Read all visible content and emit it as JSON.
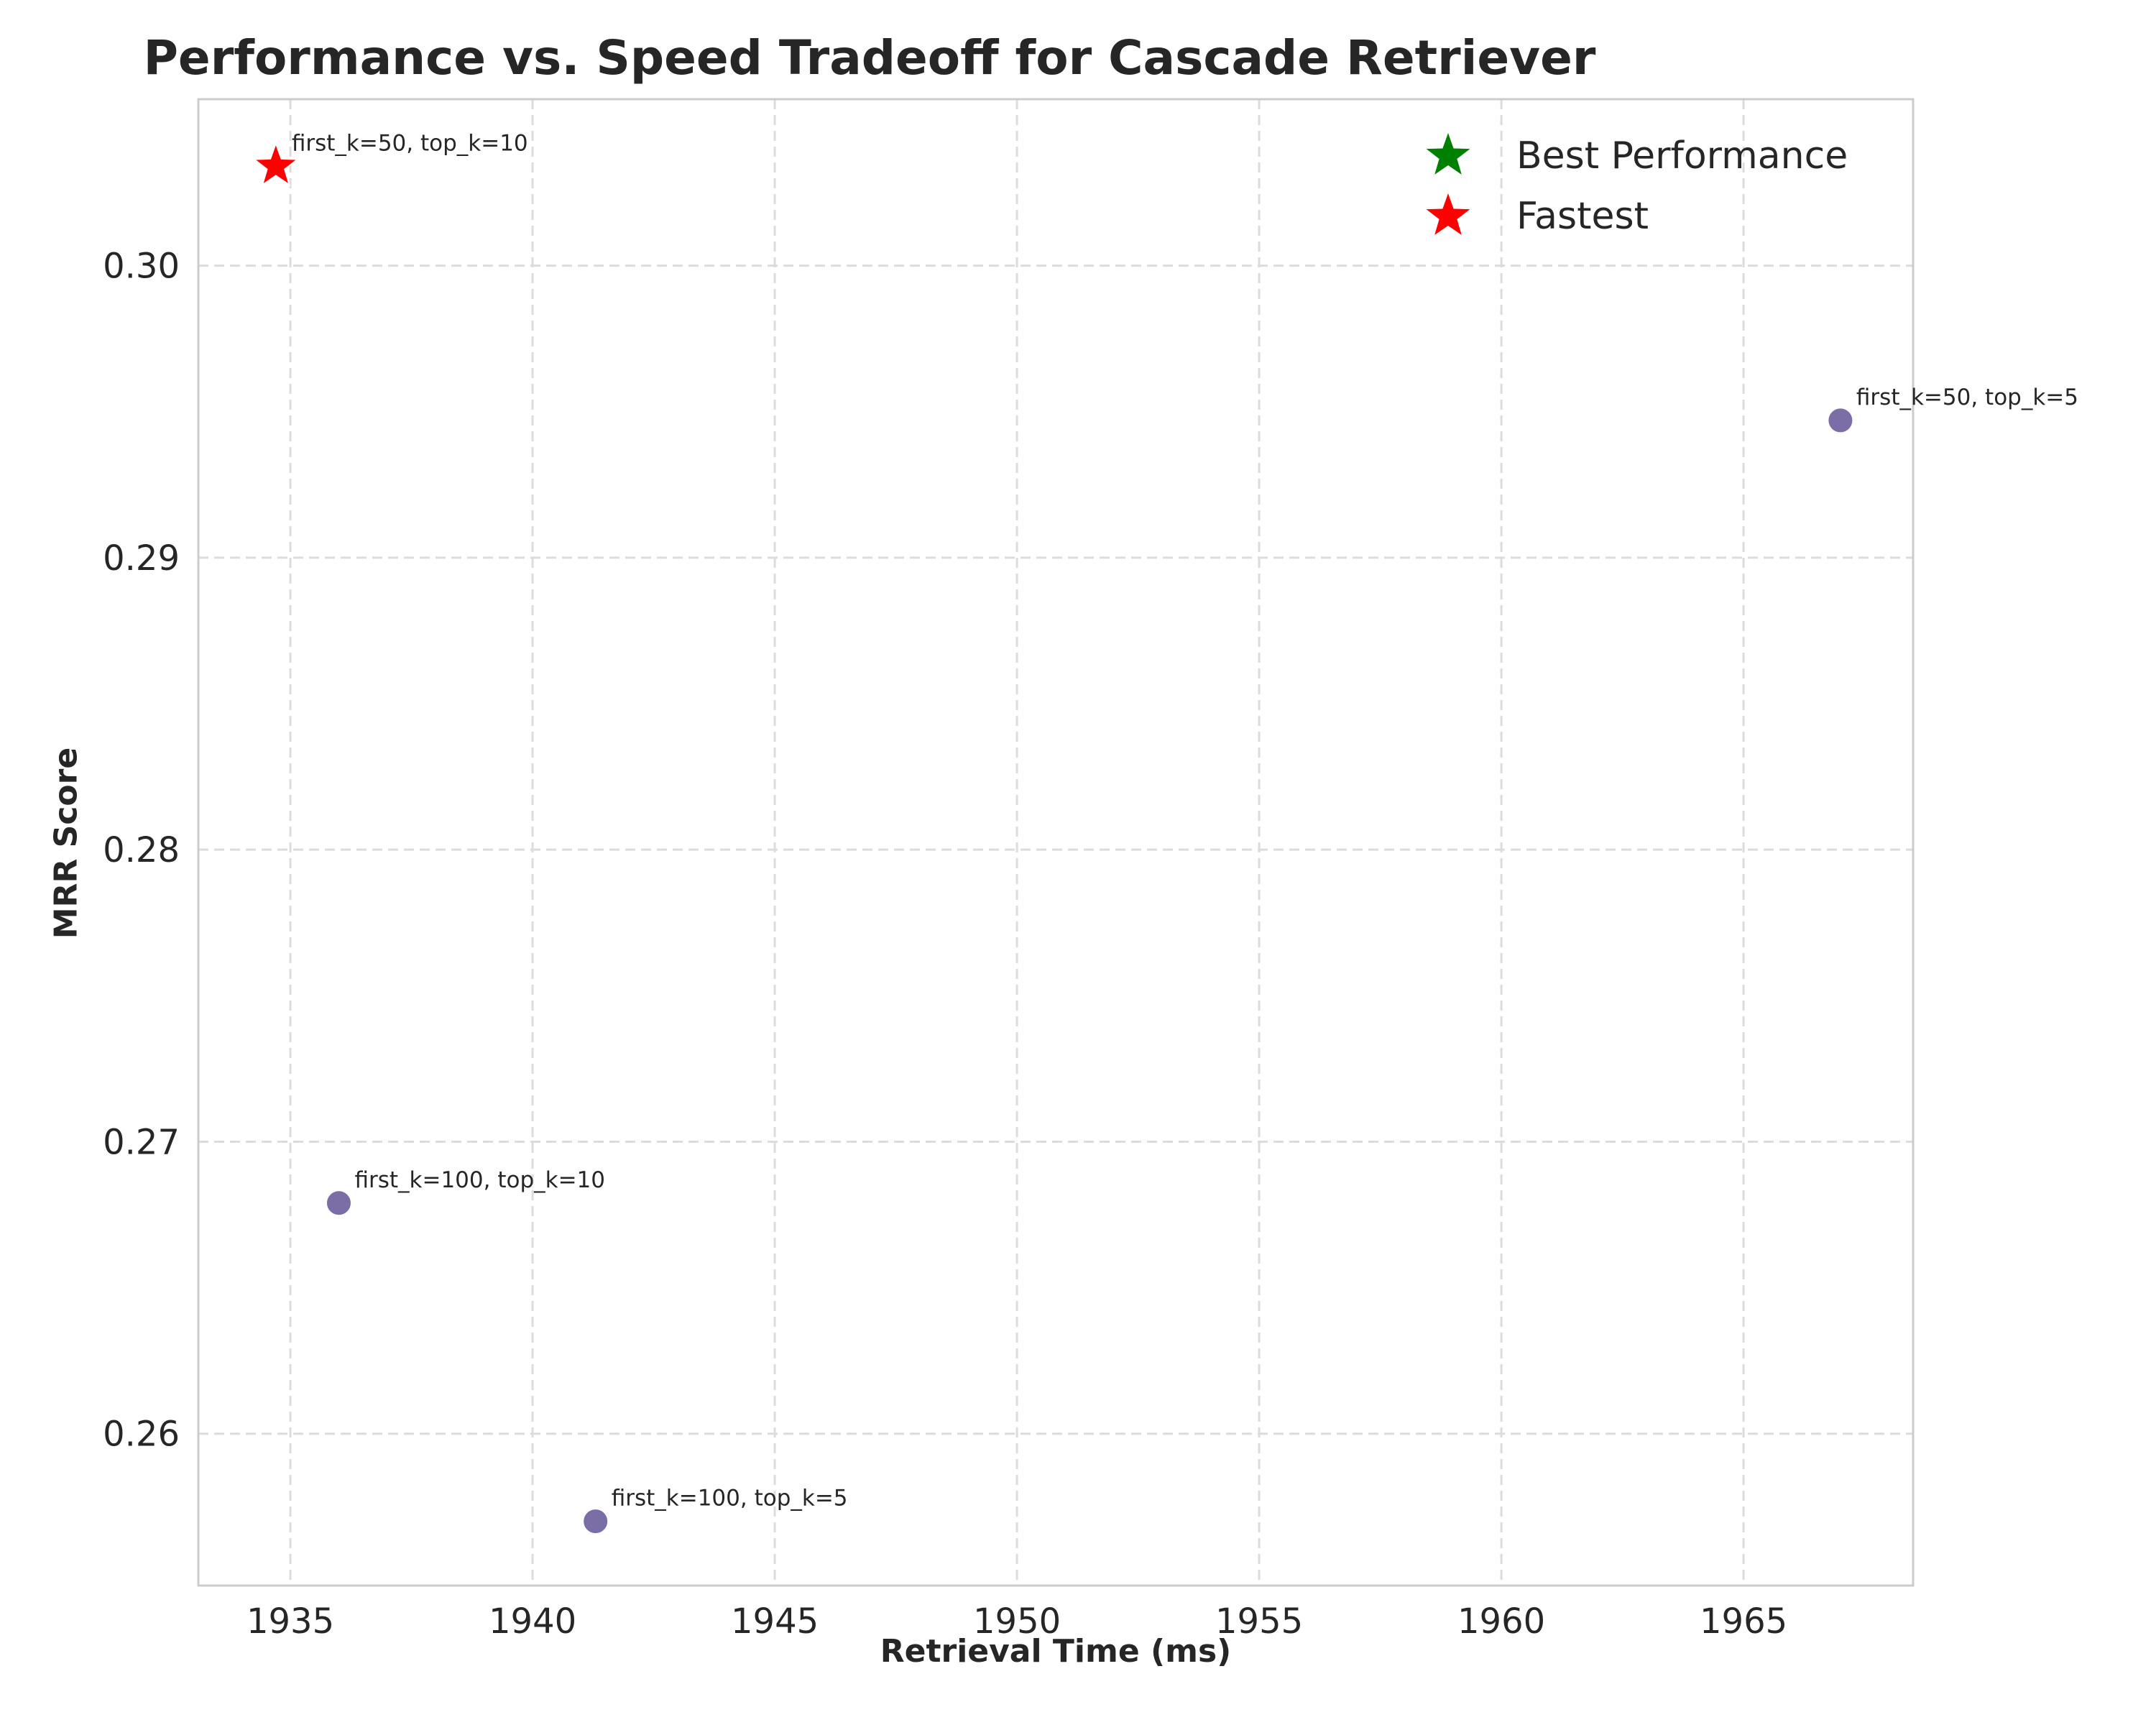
{
  "chart_data": {
    "type": "scatter",
    "title": "Performance vs. Speed Tradeoff for Cascade Retriever",
    "xlabel": "Retrieval Time (ms)",
    "ylabel": "MRR Score",
    "xlim": [
      1933.1,
      1968.5
    ],
    "ylim": [
      0.2548,
      0.3057
    ],
    "xticks": [
      1935,
      1940,
      1945,
      1950,
      1955,
      1960,
      1965
    ],
    "xtick_labels": [
      "1935",
      "1940",
      "1945",
      "1950",
      "1955",
      "1960",
      "1965"
    ],
    "yticks": [
      0.26,
      0.27,
      0.28,
      0.29,
      0.3
    ],
    "ytick_labels": [
      "0.26",
      "0.27",
      "0.28",
      "0.29",
      "0.30"
    ],
    "grid": true,
    "legend_position": "top-right",
    "points": [
      {
        "label": "first_k=50, top_k=10",
        "x": 1934.7,
        "y": 0.3034,
        "marker": "star",
        "color": "#ff0000"
      },
      {
        "label": "first_k=50, top_k=5",
        "x": 1967.0,
        "y": 0.2947,
        "marker": "circle",
        "color": "#7b6ea6"
      },
      {
        "label": "first_k=100, top_k=10",
        "x": 1936.0,
        "y": 0.2679,
        "marker": "circle",
        "color": "#7b6ea6"
      },
      {
        "label": "first_k=100, top_k=5",
        "x": 1941.3,
        "y": 0.257,
        "marker": "circle",
        "color": "#7b6ea6"
      }
    ],
    "legend": [
      {
        "label": "Best Performance",
        "color": "#008000",
        "marker": "star"
      },
      {
        "label": "Fastest",
        "color": "#ff0000",
        "marker": "star"
      }
    ]
  }
}
